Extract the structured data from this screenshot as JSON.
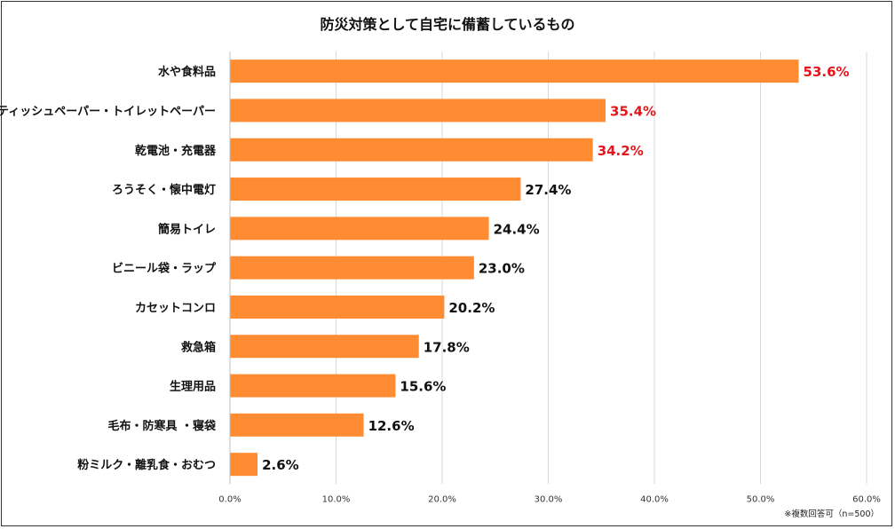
{
  "chart_data": {
    "type": "bar",
    "orientation": "horizontal",
    "title": "防災対策として自宅に備蓄しているもの",
    "categories": [
      "水や食料品",
      "ティッシュペーパー・トイレットペーパー",
      "乾電池・充電器",
      "ろうそく・懐中電灯",
      "簡易トイレ",
      "ビニール袋・ラップ",
      "カセットコンロ",
      "救急箱",
      "生理用品",
      "毛布・防寒具 ・寝袋",
      "粉ミルク・離乳食・おむつ"
    ],
    "values": [
      53.6,
      35.4,
      34.2,
      27.4,
      24.4,
      23.0,
      20.2,
      17.8,
      15.6,
      12.6,
      2.6
    ],
    "value_labels": [
      "53.6%",
      "35.4%",
      "34.2%",
      "27.4%",
      "24.4%",
      "23.0%",
      "20.2%",
      "17.8%",
      "15.6%",
      "12.6%",
      "2.6%"
    ],
    "highlight_top_n": 3,
    "xlim": [
      0,
      60
    ],
    "xticks": [
      0,
      10,
      20,
      30,
      40,
      50,
      60
    ],
    "xtick_labels": [
      "0.0%",
      "10.0%",
      "20.0%",
      "30.0%",
      "40.0%",
      "50.0%",
      "60.0%"
    ],
    "grid": "vertical",
    "note": "※複数回答可（n=500）"
  },
  "colors": {
    "bar": "#ff8c33",
    "highlight_label": "#e8141b",
    "label": "#111111",
    "grid": "#d9d9d9"
  }
}
